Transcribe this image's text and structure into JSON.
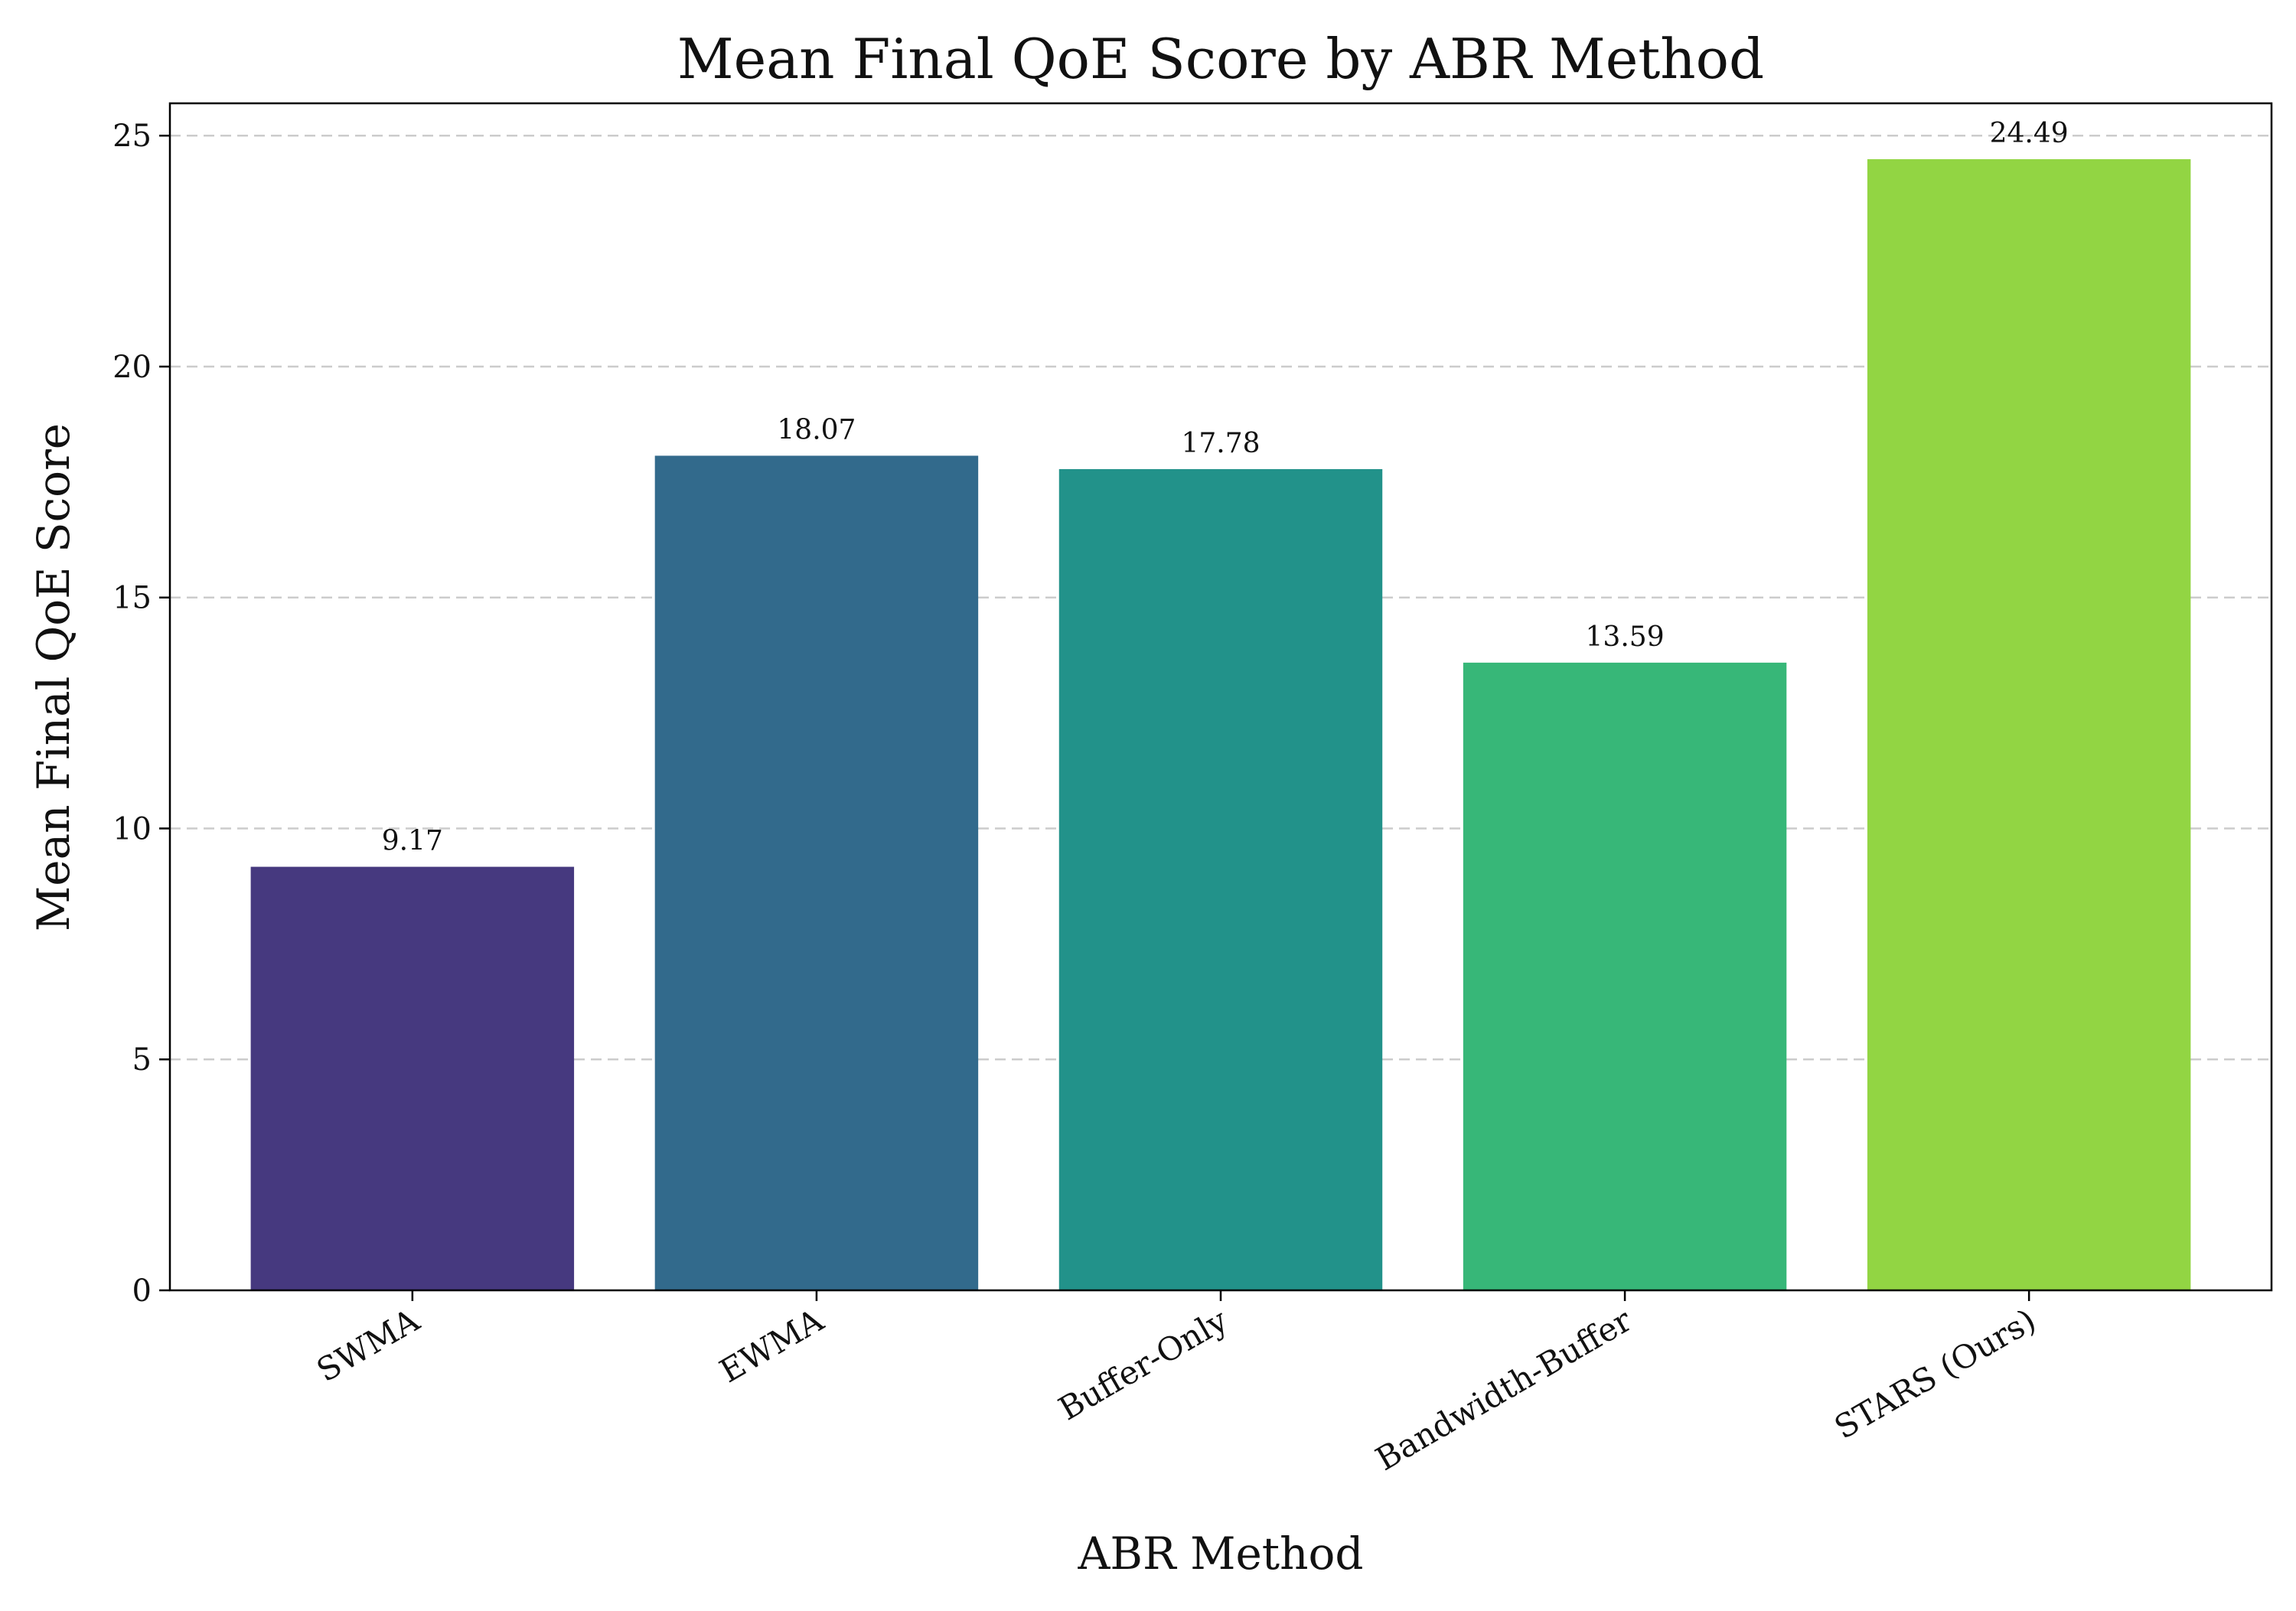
{
  "chart_data": {
    "type": "bar",
    "title": "Mean Final QoE Score by ABR Method",
    "xlabel": "ABR Method",
    "ylabel": "Mean Final QoE Score",
    "categories": [
      "SWMA",
      "EWMA",
      "Buffer-Only",
      "Bandwidth-Buffer",
      "STARS (Ours)"
    ],
    "values": [
      9.17,
      18.07,
      17.78,
      13.59,
      24.49
    ],
    "value_labels": [
      "9.17",
      "18.07",
      "17.78",
      "13.59",
      "24.49"
    ],
    "colors": [
      "#46397f",
      "#326a8c",
      "#22928a",
      "#37b778",
      "#92d543"
    ],
    "ylim": [
      0,
      25.7
    ],
    "yticks": [
      0,
      5,
      10,
      15,
      20,
      25
    ],
    "grid": "y-dashed",
    "legend": "none"
  }
}
